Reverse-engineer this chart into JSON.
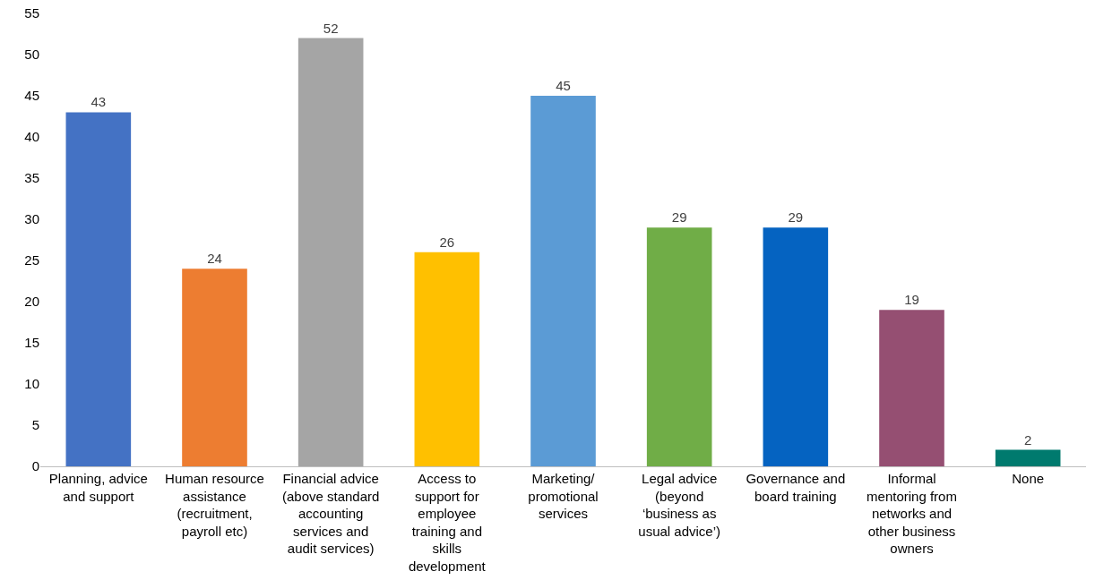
{
  "chart_data": {
    "type": "bar",
    "categories": [
      "Planning, advice and support",
      "Human resource assistance (recruitment, payroll etc)",
      "Financial advice (above standard accounting services and audit services)",
      "Access to support for employee training and skills development",
      "Marketing/ promotional services",
      "Legal advice (beyond ‘business as usual advice’)",
      "Governance and board training",
      "Informal mentoring from networks and other business owners",
      "None"
    ],
    "values": [
      43,
      24,
      52,
      26,
      45,
      29,
      29,
      19,
      2
    ],
    "colors": [
      "#4472c4",
      "#ed7d31",
      "#a5a5a5",
      "#ffc000",
      "#5b9bd5",
      "#70ad47",
      "#0563c1",
      "#954f72",
      "#007a6e"
    ],
    "ylim": [
      0,
      55
    ],
    "yticks": [
      0,
      5,
      10,
      15,
      20,
      25,
      30,
      35,
      40,
      45,
      50,
      55
    ],
    "data_labels": true
  }
}
